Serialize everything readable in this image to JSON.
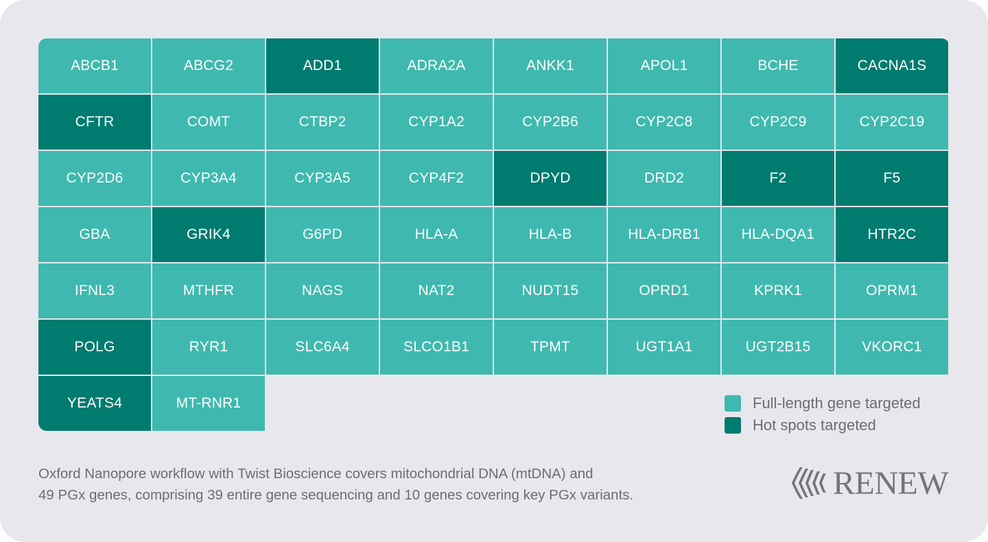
{
  "genes": [
    {
      "name": "ABCB1",
      "type": "full"
    },
    {
      "name": "ABCG2",
      "type": "full"
    },
    {
      "name": "ADD1",
      "type": "hot"
    },
    {
      "name": "ADRA2A",
      "type": "full"
    },
    {
      "name": "ANKK1",
      "type": "full"
    },
    {
      "name": "APOL1",
      "type": "full"
    },
    {
      "name": "BCHE",
      "type": "full"
    },
    {
      "name": "CACNA1S",
      "type": "hot"
    },
    {
      "name": "CFTR",
      "type": "hot"
    },
    {
      "name": "COMT",
      "type": "full"
    },
    {
      "name": "CTBP2",
      "type": "full"
    },
    {
      "name": "CYP1A2",
      "type": "full"
    },
    {
      "name": "CYP2B6",
      "type": "full"
    },
    {
      "name": "CYP2C8",
      "type": "full"
    },
    {
      "name": "CYP2C9",
      "type": "full"
    },
    {
      "name": "CYP2C19",
      "type": "full"
    },
    {
      "name": "CYP2D6",
      "type": "full"
    },
    {
      "name": "CYP3A4",
      "type": "full"
    },
    {
      "name": "CYP3A5",
      "type": "full"
    },
    {
      "name": "CYP4F2",
      "type": "full"
    },
    {
      "name": "DPYD",
      "type": "hot"
    },
    {
      "name": "DRD2",
      "type": "full"
    },
    {
      "name": "F2",
      "type": "hot"
    },
    {
      "name": "F5",
      "type": "hot"
    },
    {
      "name": "GBA",
      "type": "full"
    },
    {
      "name": "GRIK4",
      "type": "hot"
    },
    {
      "name": "G6PD",
      "type": "full"
    },
    {
      "name": "HLA-A",
      "type": "full"
    },
    {
      "name": "HLA-B",
      "type": "full"
    },
    {
      "name": "HLA-DRB1",
      "type": "full"
    },
    {
      "name": "HLA-DQA1",
      "type": "full"
    },
    {
      "name": "HTR2C",
      "type": "hot"
    },
    {
      "name": "IFNL3",
      "type": "full"
    },
    {
      "name": "MTHFR",
      "type": "full"
    },
    {
      "name": "NAGS",
      "type": "full"
    },
    {
      "name": "NAT2",
      "type": "full"
    },
    {
      "name": "NUDT15",
      "type": "full"
    },
    {
      "name": "OPRD1",
      "type": "full"
    },
    {
      "name": "KPRK1",
      "type": "full"
    },
    {
      "name": "OPRM1",
      "type": "full"
    },
    {
      "name": "POLG",
      "type": "hot"
    },
    {
      "name": "RYR1",
      "type": "full"
    },
    {
      "name": "SLC6A4",
      "type": "full"
    },
    {
      "name": "SLCO1B1",
      "type": "full"
    },
    {
      "name": "TPMT",
      "type": "full"
    },
    {
      "name": "UGT1A1",
      "type": "full"
    },
    {
      "name": "UGT2B15",
      "type": "full"
    },
    {
      "name": "VKORC1",
      "type": "full"
    },
    {
      "name": "YEATS4",
      "type": "hot"
    },
    {
      "name": "MT-RNR1",
      "type": "full"
    }
  ],
  "legend": {
    "full": {
      "label": "Full-length gene targeted",
      "color": "#3fb9af"
    },
    "hot": {
      "label": "Hot spots targeted",
      "color": "#007b6f"
    }
  },
  "caption": {
    "line1": "Oxford Nanopore workflow with Twist Bioscience covers mitochondrial DNA (mtDNA) and",
    "line2": "49 PGx genes, comprising 39 entire gene sequencing and 10 genes covering key PGx variants."
  },
  "logo": {
    "text": "RENEW",
    "icon": "renew-logo-icon"
  }
}
